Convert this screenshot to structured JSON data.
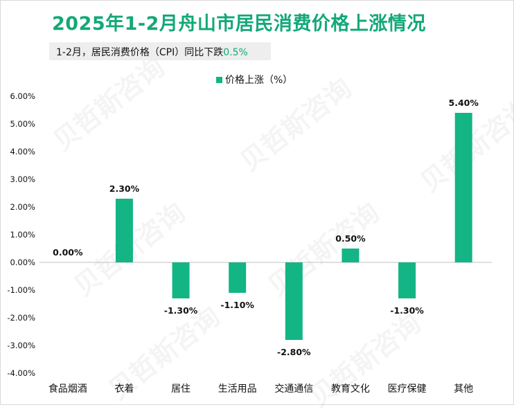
{
  "title": "2025年1-2月舟山市居民消费价格上涨情况",
  "subtitle": {
    "prefix": "1-2月，居民消费价格（CPI）同比下跌",
    "highlight": "0.5%"
  },
  "watermark": "贝哲斯咨询",
  "colors": {
    "accent": "#13a878",
    "bar": "#13b585",
    "axis": "#bfbfbf",
    "text": "#111111"
  },
  "chart_data": {
    "type": "bar",
    "title": "2025年1-2月舟山市居民消费价格上涨情况",
    "categories": [
      "食品烟酒",
      "衣着",
      "居住",
      "生活用品",
      "交通通信",
      "教育文化",
      "医疗保健",
      "其他"
    ],
    "series": [
      {
        "name": "价格上涨（%）",
        "values": [
          0.0,
          2.3,
          -1.3,
          -1.1,
          -2.8,
          0.5,
          -1.3,
          5.4
        ]
      }
    ],
    "value_labels": [
      "0.00%",
      "2.30%",
      "-1.30%",
      "-1.10%",
      "-2.80%",
      "0.50%",
      "-1.30%",
      "5.40%"
    ],
    "yticks": [
      "6.00%",
      "5.00%",
      "4.00%",
      "3.00%",
      "2.00%",
      "1.00%",
      "0.00%",
      "-1.00%",
      "-2.00%",
      "-3.00%",
      "-4.00%"
    ],
    "ylim": [
      -4,
      6
    ],
    "grid": false,
    "legend": "top-center"
  }
}
